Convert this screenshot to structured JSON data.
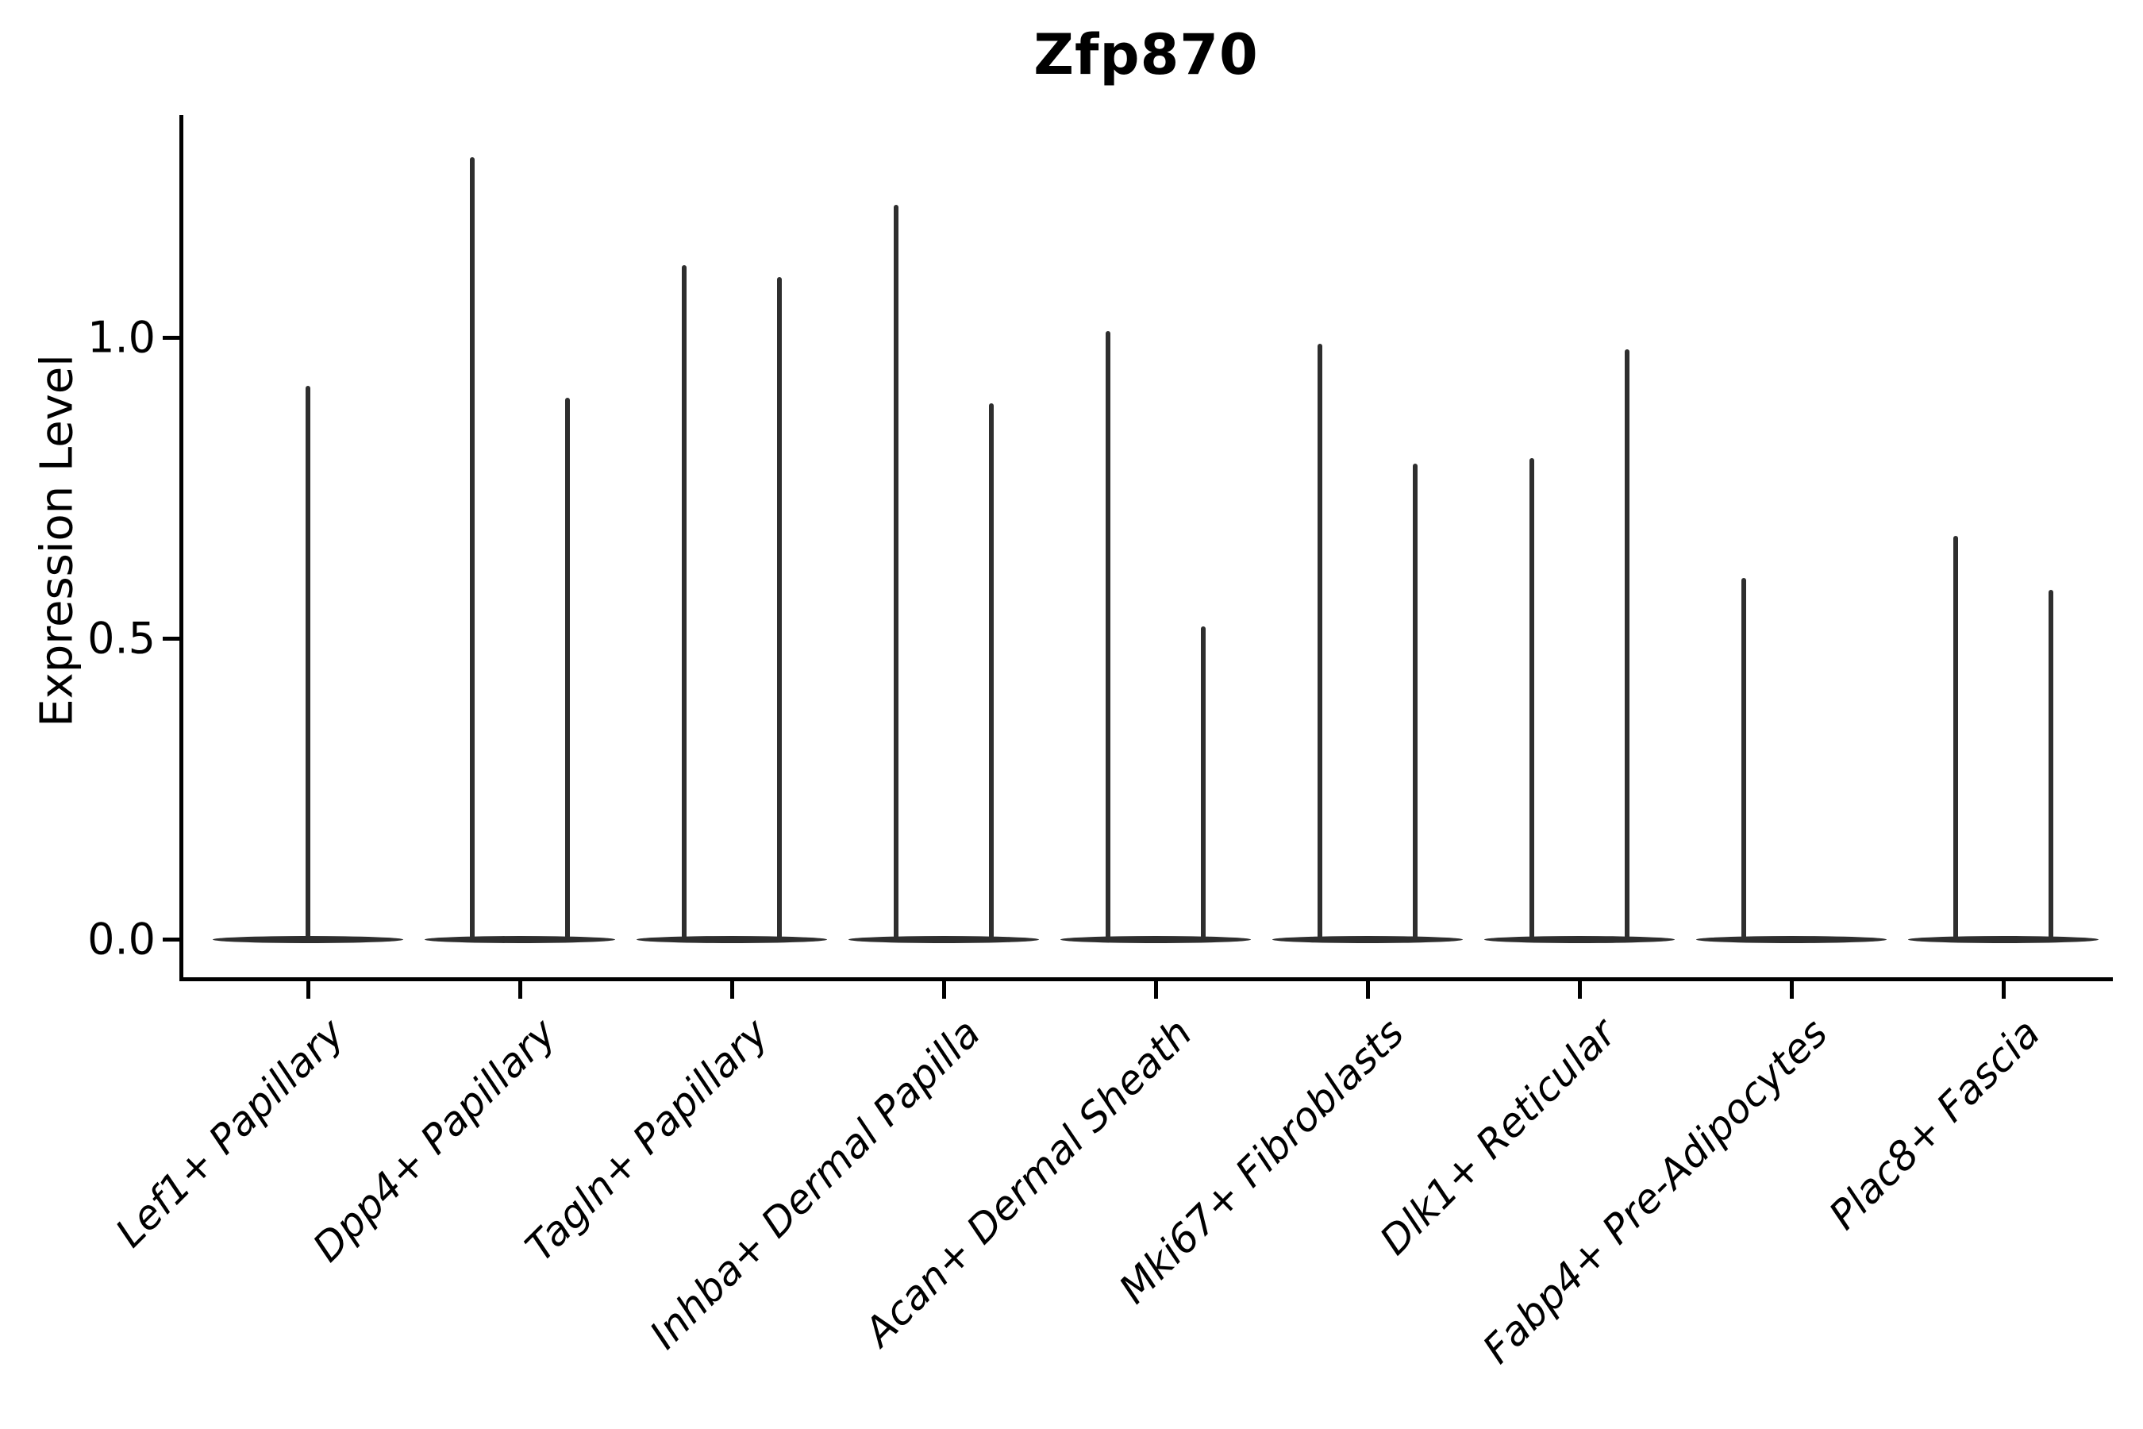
{
  "title": "Zfp870",
  "y_axis": {
    "label": "Expression Level",
    "tick_labels": [
      "0.0",
      "0.5",
      "1.0"
    ]
  },
  "chart_data": {
    "type": "violin",
    "title": "Zfp870",
    "xlabel": "",
    "ylabel": "Expression Level",
    "ylim": [
      -0.065,
      1.375
    ],
    "yticks": [
      0.0,
      0.5,
      1.0
    ],
    "ytick_labels": [
      "0.0",
      "0.5",
      "1.0"
    ],
    "grid": false,
    "legend": "none",
    "style": "collapsed violins: flat lens-shaped body at zero expression with a thin density spike rising to each group's maximum",
    "categories": [
      "Lef1+ Papillary",
      "Dpp4+ Papillary",
      "Tagln+ Papillary",
      "Inhba+ Dermal Papilla",
      "Acan+ Dermal Sheath",
      "Mki67+ Fibroblasts",
      "Dlk1+ Reticular",
      "Fabp4+ Pre-Adipocytes",
      "Plac8+ Fascia"
    ],
    "violins": [
      {
        "category": "Lef1+ Papillary",
        "spikes": [
          {
            "position": "center",
            "max": 0.92
          }
        ]
      },
      {
        "category": "Dpp4+ Papillary",
        "spikes": [
          {
            "position": "left",
            "max": 1.3
          },
          {
            "position": "right",
            "max": 0.9
          }
        ]
      },
      {
        "category": "Tagln+ Papillary",
        "spikes": [
          {
            "position": "left",
            "max": 1.12
          },
          {
            "position": "right",
            "max": 1.1
          }
        ]
      },
      {
        "category": "Inhba+ Dermal Papilla",
        "spikes": [
          {
            "position": "left",
            "max": 1.22
          },
          {
            "position": "right",
            "max": 0.89
          }
        ]
      },
      {
        "category": "Acan+ Dermal Sheath",
        "spikes": [
          {
            "position": "left",
            "max": 1.01
          },
          {
            "position": "right",
            "max": 0.52
          }
        ]
      },
      {
        "category": "Mki67+ Fibroblasts",
        "spikes": [
          {
            "position": "left",
            "max": 0.99
          },
          {
            "position": "right",
            "max": 0.79
          }
        ]
      },
      {
        "category": "Dlk1+ Reticular",
        "spikes": [
          {
            "position": "left",
            "max": 0.8
          },
          {
            "position": "right",
            "max": 0.98
          }
        ]
      },
      {
        "category": "Fabp4+ Pre-Adipocytes",
        "spikes": [
          {
            "position": "left",
            "max": 0.6
          }
        ]
      },
      {
        "category": "Plac8+ Fascia",
        "spikes": [
          {
            "position": "left",
            "max": 0.67
          },
          {
            "position": "right",
            "max": 0.58
          }
        ]
      }
    ],
    "colors": {
      "violin": "#2e2e2e",
      "axis": "#000000",
      "text": "#000000",
      "background": "#ffffff"
    }
  }
}
